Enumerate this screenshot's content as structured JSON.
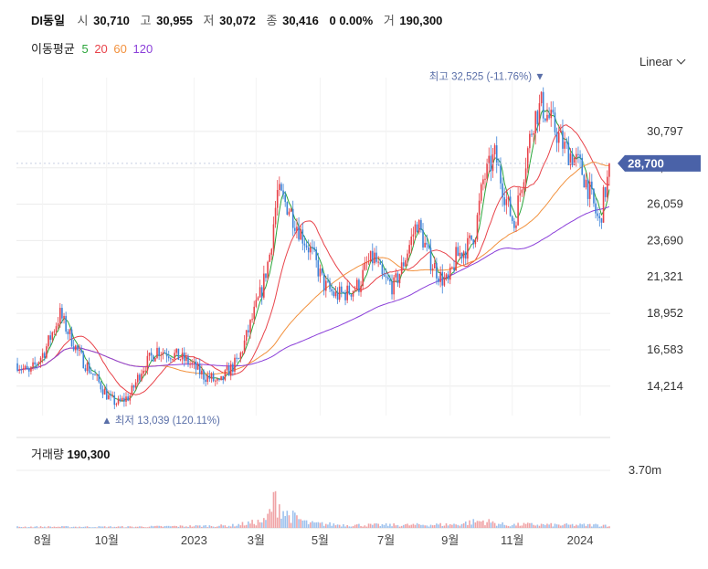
{
  "header": {
    "name": "DI동일",
    "open_label": "시",
    "open": "30,710",
    "high_label": "고",
    "high": "30,955",
    "low_label": "저",
    "low": "30,072",
    "close_label": "종",
    "close": "30,416",
    "change": "0 0.00%",
    "volume_label": "거",
    "volume": "190,300"
  },
  "ma_legend": {
    "title": "이동평균",
    "items": [
      {
        "label": "5",
        "color": "#2aa53a"
      },
      {
        "label": "20",
        "color": "#e8434a"
      },
      {
        "label": "60",
        "color": "#f2913d"
      },
      {
        "label": "120",
        "color": "#8b3fd9"
      }
    ]
  },
  "scale_button": {
    "label": "Linear",
    "icon": "chevron-down-icon"
  },
  "current_price": {
    "label": "28,700",
    "color": "#4a62a8"
  },
  "annotations": {
    "max": {
      "text": "최고 32,525 (-11.76%)",
      "marker": "▼"
    },
    "min": {
      "text": "최저 13,039 (120.11%)",
      "marker": "▲"
    }
  },
  "volume_panel": {
    "title": "거래량",
    "value": "190,300",
    "axis_label": "3.70m"
  },
  "colors": {
    "up": "#e8434a",
    "down": "#3b82d8",
    "grid": "#ececec"
  },
  "chart_data": {
    "type": "candlestick",
    "y_ticks": [
      "30,797",
      "28,428",
      "26,059",
      "23,690",
      "21,321",
      "18,952",
      "16,583",
      "14,214"
    ],
    "y_tick_values": [
      30797,
      28428,
      26059,
      23690,
      21321,
      18952,
      16583,
      14214
    ],
    "ylim": [
      12300,
      33700
    ],
    "x_ticks": [
      "8월",
      "10월",
      "2023",
      "3월",
      "5월",
      "7월",
      "9월",
      "11월",
      "2024"
    ],
    "x_tick_index": [
      13,
      46,
      91,
      123,
      156,
      190,
      223,
      255,
      290
    ],
    "n_bars": 306,
    "price_anchors": [
      [
        0,
        15700
      ],
      [
        6,
        15000
      ],
      [
        14,
        16500
      ],
      [
        22,
        18900
      ],
      [
        24,
        18300
      ],
      [
        32,
        16200
      ],
      [
        40,
        14800
      ],
      [
        48,
        13300
      ],
      [
        52,
        13100
      ],
      [
        58,
        13600
      ],
      [
        64,
        15300
      ],
      [
        72,
        16600
      ],
      [
        80,
        16300
      ],
      [
        88,
        15800
      ],
      [
        96,
        14900
      ],
      [
        100,
        14700
      ],
      [
        104,
        14300
      ],
      [
        108,
        15100
      ],
      [
        114,
        15900
      ],
      [
        120,
        18200
      ],
      [
        126,
        20500
      ],
      [
        130,
        22800
      ],
      [
        134,
        26800
      ],
      [
        140,
        25800
      ],
      [
        146,
        24200
      ],
      [
        152,
        22800
      ],
      [
        158,
        20800
      ],
      [
        164,
        20100
      ],
      [
        170,
        20300
      ],
      [
        176,
        20800
      ],
      [
        180,
        22100
      ],
      [
        184,
        22600
      ],
      [
        188,
        21200
      ],
      [
        194,
        20700
      ],
      [
        198,
        21900
      ],
      [
        202,
        23400
      ],
      [
        206,
        24900
      ],
      [
        212,
        22600
      ],
      [
        218,
        21300
      ],
      [
        222,
        20900
      ],
      [
        226,
        22600
      ],
      [
        232,
        23300
      ],
      [
        236,
        24300
      ],
      [
        240,
        27600
      ],
      [
        246,
        29200
      ],
      [
        252,
        26300
      ],
      [
        256,
        24700
      ],
      [
        260,
        27600
      ],
      [
        266,
        31600
      ],
      [
        270,
        32500
      ],
      [
        276,
        31200
      ],
      [
        282,
        29700
      ],
      [
        286,
        29200
      ],
      [
        290,
        28500
      ],
      [
        294,
        27200
      ],
      [
        298,
        25500
      ],
      [
        300,
        24800
      ],
      [
        302,
        26400
      ],
      [
        306,
        28700
      ]
    ],
    "volume_anchors": [
      [
        0,
        0.02
      ],
      [
        60,
        0.02
      ],
      [
        110,
        0.04
      ],
      [
        128,
        0.12
      ],
      [
        133,
        0.5
      ],
      [
        138,
        0.25
      ],
      [
        150,
        0.08
      ],
      [
        170,
        0.05
      ],
      [
        200,
        0.05
      ],
      [
        226,
        0.06
      ],
      [
        234,
        0.1
      ],
      [
        240,
        0.12
      ],
      [
        252,
        0.05
      ],
      [
        262,
        0.06
      ],
      [
        280,
        0.05
      ],
      [
        306,
        0.05
      ]
    ],
    "volume_max": 3700000,
    "moving_averages": [
      5,
      20,
      60,
      120
    ]
  }
}
